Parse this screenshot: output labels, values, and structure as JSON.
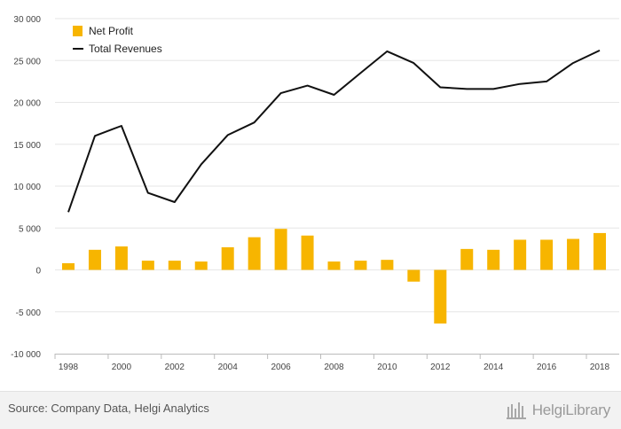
{
  "chart_data": {
    "type": "bar+line",
    "categories": [
      "1998",
      "1999",
      "2000",
      "2001",
      "2002",
      "2003",
      "2004",
      "2005",
      "2006",
      "2007",
      "2008",
      "2009",
      "2010",
      "2011",
      "2012",
      "2013",
      "2014",
      "2015",
      "2016",
      "2017",
      "2018"
    ],
    "x_tick_labels": [
      "1998",
      "2000",
      "2002",
      "2004",
      "2006",
      "2008",
      "2010",
      "2012",
      "2014",
      "2016",
      "2018"
    ],
    "series": [
      {
        "name": "Net Profit",
        "type": "bar",
        "color": "#f7b500",
        "values": [
          800,
          2400,
          2800,
          1100,
          1100,
          1000,
          2700,
          3900,
          4900,
          4100,
          1000,
          1100,
          1200,
          -1400,
          -6400,
          2500,
          2400,
          3600,
          3600,
          3700,
          4400
        ]
      },
      {
        "name": "Total Revenues",
        "type": "line",
        "color": "#111111",
        "values": [
          6900,
          16000,
          17200,
          9200,
          8100,
          12600,
          16100,
          17600,
          21100,
          22000,
          20900,
          23500,
          26100,
          24700,
          21800,
          21600,
          21600,
          22200,
          22500,
          24700,
          26200
        ]
      }
    ],
    "y_ticks": [
      -10000,
      -5000,
      0,
      5000,
      10000,
      15000,
      20000,
      25000,
      30000
    ],
    "y_tick_labels": [
      "-10 000",
      "-5 000",
      "0",
      "5 000",
      "10 000",
      "15 000",
      "20 000",
      "25 000",
      "30 000"
    ],
    "ylim": [
      -10000,
      30000
    ],
    "grid": true,
    "legend_position": "top-left",
    "title": "",
    "xlabel": "",
    "ylabel": ""
  },
  "footer": {
    "source": "Source: Company Data, Helgi Analytics",
    "brand": "HelgiLibrary"
  }
}
